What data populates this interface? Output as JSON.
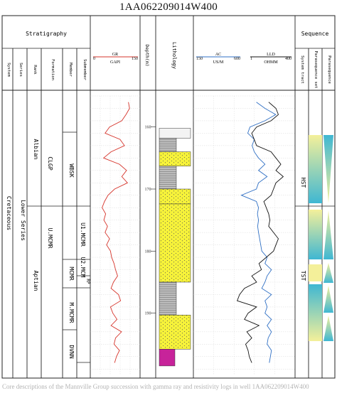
{
  "well_name": "1AA062209014W400",
  "headers": {
    "stratigraphy": "Stratigraphy",
    "system": "System",
    "series": "Series",
    "rank": "Rank",
    "formation": "Formation",
    "member": "Member",
    "submember": "Submember",
    "depth": "Depth(m)",
    "lithology": "Lithology",
    "sequence": "Sequence",
    "system_tract": "System tract",
    "parasequence_set": "Parasequence set",
    "parasequence": "Parasequence"
  },
  "strat_units": {
    "system": "Cretaceous",
    "series": "Lower Series",
    "rank_upper": "Albian",
    "rank_lower": "Aptian",
    "formation_upper": "CLGP",
    "formation_lower": "U.MCMR",
    "member_1": "WBSK",
    "member_2": "U1.MCMR",
    "member_3": "MCMR",
    "member_4": "M.MCMR",
    "member_5": "DVNN",
    "submember_1": "U2.MCM",
    "submember_2": "RP"
  },
  "system_tracts": [
    "HST",
    "TST"
  ],
  "caption": "Core descriptions of the Mannville Group succession with gamma ray and resistivity logs in well 1AA062209014W400",
  "chart_data": {
    "type": "line",
    "title": "1AA062209014W400",
    "depth_axis": {
      "label": "Depth(m)",
      "range": [
        155,
        200
      ],
      "ticks": [
        160,
        170,
        180,
        190
      ]
    },
    "tracks": [
      {
        "name": "GR",
        "unit": "GAPI",
        "range": [
          0,
          150
        ],
        "color": "#d6342b",
        "series": [
          {
            "depth": 156,
            "value": 118
          },
          {
            "depth": 157,
            "value": 122
          },
          {
            "depth": 158,
            "value": 110
          },
          {
            "depth": 159,
            "value": 96
          },
          {
            "depth": 160,
            "value": 55
          },
          {
            "depth": 161,
            "value": 40
          },
          {
            "depth": 162,
            "value": 90
          },
          {
            "depth": 163,
            "value": 105
          },
          {
            "depth": 164,
            "value": 60
          },
          {
            "depth": 165,
            "value": 35
          },
          {
            "depth": 166,
            "value": 88
          },
          {
            "depth": 167,
            "value": 112
          },
          {
            "depth": 168,
            "value": 96
          },
          {
            "depth": 169,
            "value": 115
          },
          {
            "depth": 170,
            "value": 72
          },
          {
            "depth": 171,
            "value": 50
          },
          {
            "depth": 172,
            "value": 38
          },
          {
            "depth": 173,
            "value": 30
          },
          {
            "depth": 174,
            "value": 42
          },
          {
            "depth": 175,
            "value": 36
          },
          {
            "depth": 176,
            "value": 48
          },
          {
            "depth": 177,
            "value": 40
          },
          {
            "depth": 178,
            "value": 55
          },
          {
            "depth": 179,
            "value": 45
          },
          {
            "depth": 180,
            "value": 58
          },
          {
            "depth": 181,
            "value": 62
          },
          {
            "depth": 182,
            "value": 70
          },
          {
            "depth": 183,
            "value": 75
          },
          {
            "depth": 184,
            "value": 82
          },
          {
            "depth": 185,
            "value": 68
          },
          {
            "depth": 186,
            "value": 60
          },
          {
            "depth": 187,
            "value": 85
          },
          {
            "depth": 188,
            "value": 92
          },
          {
            "depth": 189,
            "value": 58
          },
          {
            "depth": 190,
            "value": 66
          },
          {
            "depth": 191,
            "value": 80
          },
          {
            "depth": 192,
            "value": 60
          },
          {
            "depth": 193,
            "value": 95
          },
          {
            "depth": 194,
            "value": 75
          },
          {
            "depth": 195,
            "value": 70
          },
          {
            "depth": 196,
            "value": 88
          },
          {
            "depth": 197,
            "value": 78
          },
          {
            "depth": 198,
            "value": 72
          }
        ]
      },
      {
        "name": "AC",
        "unit": "US/M",
        "range": [
          150,
          600
        ],
        "color": "#2f6fc4",
        "series": [
          {
            "depth": 156,
            "value": 430
          },
          {
            "depth": 157,
            "value": 470
          },
          {
            "depth": 158,
            "value": 520
          },
          {
            "depth": 159,
            "value": 470
          },
          {
            "depth": 160,
            "value": 400
          },
          {
            "depth": 161,
            "value": 390
          },
          {
            "depth": 162,
            "value": 420
          },
          {
            "depth": 163,
            "value": 410
          },
          {
            "depth": 164,
            "value": 420
          },
          {
            "depth": 165,
            "value": 440
          },
          {
            "depth": 166,
            "value": 470
          },
          {
            "depth": 167,
            "value": 440
          },
          {
            "depth": 168,
            "value": 480
          },
          {
            "depth": 169,
            "value": 440
          },
          {
            "depth": 170,
            "value": 430
          },
          {
            "depth": 171,
            "value": 360
          },
          {
            "depth": 172,
            "value": 430
          },
          {
            "depth": 173,
            "value": 440
          },
          {
            "depth": 174,
            "value": 435
          },
          {
            "depth": 175,
            "value": 440
          },
          {
            "depth": 176,
            "value": 436
          },
          {
            "depth": 177,
            "value": 440
          },
          {
            "depth": 178,
            "value": 445
          },
          {
            "depth": 179,
            "value": 450
          },
          {
            "depth": 180,
            "value": 455
          },
          {
            "depth": 181,
            "value": 480
          },
          {
            "depth": 182,
            "value": 470
          },
          {
            "depth": 183,
            "value": 500
          },
          {
            "depth": 184,
            "value": 480
          },
          {
            "depth": 185,
            "value": 470
          },
          {
            "depth": 186,
            "value": 455
          },
          {
            "depth": 187,
            "value": 500
          },
          {
            "depth": 188,
            "value": 470
          },
          {
            "depth": 189,
            "value": 480
          },
          {
            "depth": 190,
            "value": 470
          },
          {
            "depth": 191,
            "value": 500
          },
          {
            "depth": 192,
            "value": 480
          },
          {
            "depth": 193,
            "value": 500
          },
          {
            "depth": 194,
            "value": 485
          },
          {
            "depth": 195,
            "value": 480
          },
          {
            "depth": 196,
            "value": 500
          },
          {
            "depth": 197,
            "value": 495
          },
          {
            "depth": 198,
            "value": 490
          }
        ]
      },
      {
        "name": "LLD",
        "unit": "OHMM",
        "range": [
          1,
          400
        ],
        "color": "#111111",
        "series": [
          {
            "depth": 156,
            "value": 300
          },
          {
            "depth": 157,
            "value": 330
          },
          {
            "depth": 158,
            "value": 340
          },
          {
            "depth": 159,
            "value": 310
          },
          {
            "depth": 160,
            "value": 250
          },
          {
            "depth": 161,
            "value": 230
          },
          {
            "depth": 162,
            "value": 240
          },
          {
            "depth": 163,
            "value": 250
          },
          {
            "depth": 164,
            "value": 310
          },
          {
            "depth": 165,
            "value": 330
          },
          {
            "depth": 166,
            "value": 350
          },
          {
            "depth": 167,
            "value": 330
          },
          {
            "depth": 168,
            "value": 360
          },
          {
            "depth": 169,
            "value": 330
          },
          {
            "depth": 170,
            "value": 320
          },
          {
            "depth": 171,
            "value": 310
          },
          {
            "depth": 172,
            "value": 280
          },
          {
            "depth": 173,
            "value": 290
          },
          {
            "depth": 174,
            "value": 300
          },
          {
            "depth": 175,
            "value": 305
          },
          {
            "depth": 176,
            "value": 300
          },
          {
            "depth": 177,
            "value": 320
          },
          {
            "depth": 178,
            "value": 340
          },
          {
            "depth": 179,
            "value": 330
          },
          {
            "depth": 180,
            "value": 320
          },
          {
            "depth": 181,
            "value": 290
          },
          {
            "depth": 182,
            "value": 260
          },
          {
            "depth": 183,
            "value": 270
          },
          {
            "depth": 184,
            "value": 230
          },
          {
            "depth": 185,
            "value": 250
          },
          {
            "depth": 186,
            "value": 200
          },
          {
            "depth": 187,
            "value": 180
          },
          {
            "depth": 188,
            "value": 170
          },
          {
            "depth": 189,
            "value": 250
          },
          {
            "depth": 190,
            "value": 215
          },
          {
            "depth": 191,
            "value": 200
          },
          {
            "depth": 192,
            "value": 260
          },
          {
            "depth": 193,
            "value": 210
          },
          {
            "depth": 194,
            "value": 230
          },
          {
            "depth": 195,
            "value": 205
          },
          {
            "depth": 196,
            "value": 215
          },
          {
            "depth": 197,
            "value": 220
          },
          {
            "depth": 198,
            "value": 230
          }
        ]
      }
    ],
    "lithology": [
      {
        "top": 160.2,
        "base": 161.8,
        "type": "core-label"
      },
      {
        "top": 161.8,
        "base": 164.0,
        "type": "gray-shale"
      },
      {
        "top": 164.0,
        "base": 166.3,
        "type": "yellow-sandstone"
      },
      {
        "top": 166.3,
        "base": 170.0,
        "type": "gray-shale"
      },
      {
        "top": 170.0,
        "base": 172.4,
        "type": "yellow-sandstone"
      },
      {
        "top": 172.4,
        "base": 185.0,
        "type": "yellow-sandstone"
      },
      {
        "top": 185.0,
        "base": 190.3,
        "type": "gray-shale"
      },
      {
        "top": 190.3,
        "base": 195.8,
        "type": "yellow-sandstone"
      },
      {
        "top": 195.8,
        "base": 198.5,
        "type": "magenta"
      }
    ]
  }
}
